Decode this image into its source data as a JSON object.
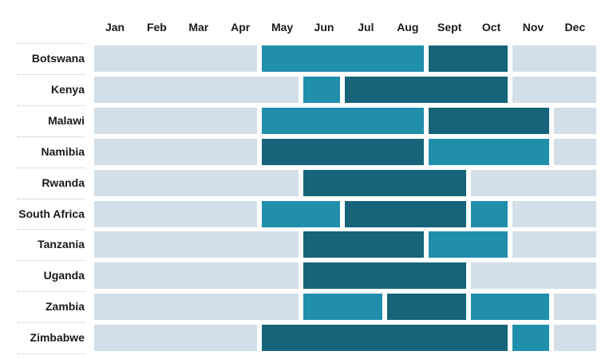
{
  "chart_data": {
    "type": "heatmap",
    "months": [
      "Jan",
      "Feb",
      "Mar",
      "Apr",
      "May",
      "Jun",
      "Jul",
      "Aug",
      "Sept",
      "Oct",
      "Nov",
      "Dec"
    ],
    "colors": {
      "none": "#d3dfe8",
      "good": "#208fac",
      "best": "#17647a"
    },
    "rows": [
      {
        "country": "Botswana",
        "segments": [
          {
            "start": 1,
            "end": 4,
            "level": "none"
          },
          {
            "start": 5,
            "end": 8,
            "level": "good"
          },
          {
            "start": 9,
            "end": 10,
            "level": "best"
          },
          {
            "start": 11,
            "end": 12,
            "level": "none"
          }
        ]
      },
      {
        "country": "Kenya",
        "segments": [
          {
            "start": 1,
            "end": 5,
            "level": "none"
          },
          {
            "start": 6,
            "end": 6,
            "level": "good"
          },
          {
            "start": 7,
            "end": 10,
            "level": "best"
          },
          {
            "start": 11,
            "end": 12,
            "level": "none"
          }
        ]
      },
      {
        "country": "Malawi",
        "segments": [
          {
            "start": 1,
            "end": 4,
            "level": "none"
          },
          {
            "start": 5,
            "end": 8,
            "level": "good"
          },
          {
            "start": 9,
            "end": 11,
            "level": "best"
          },
          {
            "start": 12,
            "end": 12,
            "level": "none"
          }
        ]
      },
      {
        "country": "Namibia",
        "segments": [
          {
            "start": 1,
            "end": 4,
            "level": "none"
          },
          {
            "start": 5,
            "end": 8,
            "level": "best"
          },
          {
            "start": 9,
            "end": 11,
            "level": "good"
          },
          {
            "start": 12,
            "end": 12,
            "level": "none"
          }
        ]
      },
      {
        "country": "Rwanda",
        "segments": [
          {
            "start": 1,
            "end": 5,
            "level": "none"
          },
          {
            "start": 6,
            "end": 9,
            "level": "best"
          },
          {
            "start": 10,
            "end": 12,
            "level": "none"
          }
        ]
      },
      {
        "country": "South Africa",
        "segments": [
          {
            "start": 1,
            "end": 4,
            "level": "none"
          },
          {
            "start": 5,
            "end": 6,
            "level": "good"
          },
          {
            "start": 7,
            "end": 9,
            "level": "best"
          },
          {
            "start": 10,
            "end": 10,
            "level": "good"
          },
          {
            "start": 11,
            "end": 12,
            "level": "none"
          }
        ]
      },
      {
        "country": "Tanzania",
        "segments": [
          {
            "start": 1,
            "end": 5,
            "level": "none"
          },
          {
            "start": 6,
            "end": 8,
            "level": "best"
          },
          {
            "start": 9,
            "end": 10,
            "level": "good"
          },
          {
            "start": 11,
            "end": 12,
            "level": "none"
          }
        ]
      },
      {
        "country": "Uganda",
        "segments": [
          {
            "start": 1,
            "end": 5,
            "level": "none"
          },
          {
            "start": 6,
            "end": 9,
            "level": "best"
          },
          {
            "start": 10,
            "end": 12,
            "level": "none"
          }
        ]
      },
      {
        "country": "Zambia",
        "segments": [
          {
            "start": 1,
            "end": 5,
            "level": "none"
          },
          {
            "start": 6,
            "end": 7,
            "level": "good"
          },
          {
            "start": 8,
            "end": 9,
            "level": "best"
          },
          {
            "start": 10,
            "end": 11,
            "level": "good"
          },
          {
            "start": 12,
            "end": 12,
            "level": "none"
          }
        ]
      },
      {
        "country": "Zimbabwe",
        "segments": [
          {
            "start": 1,
            "end": 4,
            "level": "none"
          },
          {
            "start": 5,
            "end": 10,
            "level": "best"
          },
          {
            "start": 11,
            "end": 11,
            "level": "good"
          },
          {
            "start": 12,
            "end": 12,
            "level": "none"
          }
        ]
      }
    ]
  }
}
